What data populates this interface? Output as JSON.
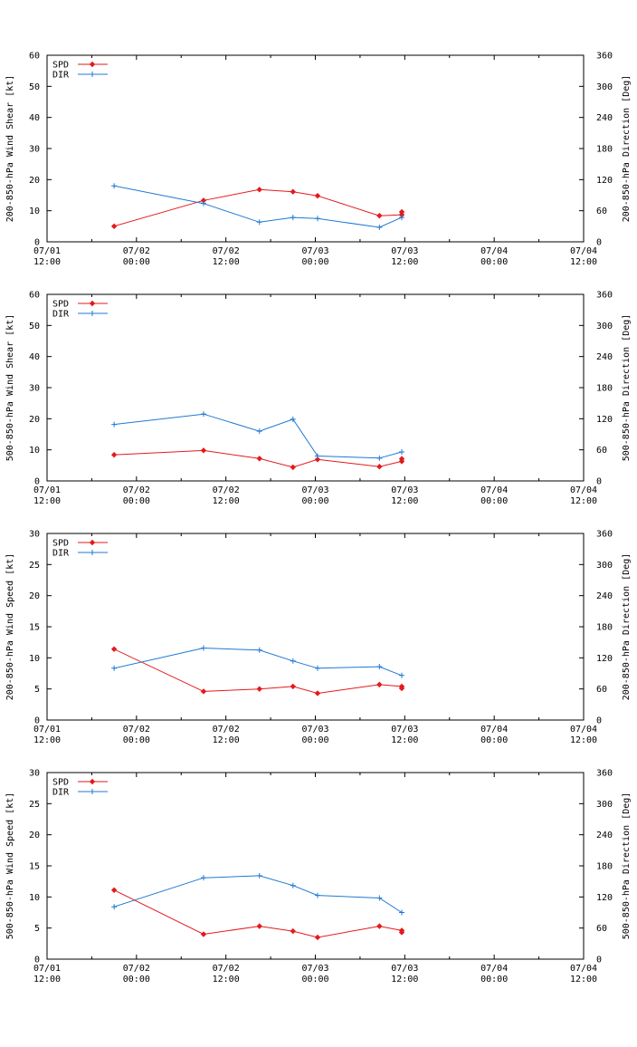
{
  "colors": {
    "spd": "#e41a1c",
    "dir": "#1f78d2",
    "axis": "#000000"
  },
  "chart_data": [
    {
      "type": "line",
      "ylabel_left": "200-850-hPa Wind Shear [kt]",
      "ylabel_right": "200-850-hPa Direction [Deg]",
      "ylim_left": [
        0,
        60
      ],
      "ylim_right": [
        0,
        360
      ],
      "yticks_left": [
        "0",
        "10",
        "20",
        "30",
        "40",
        "50",
        "60"
      ],
      "yticks_right": [
        "0",
        "60",
        "120",
        "180",
        "240",
        "300",
        "360"
      ],
      "xlim_hours": [
        0,
        72
      ],
      "xtick_labels": [
        [
          "07/01",
          "12:00"
        ],
        [
          "07/02",
          "00:00"
        ],
        [
          "07/02",
          "12:00"
        ],
        [
          "07/03",
          "00:00"
        ],
        [
          "07/03",
          "12:00"
        ],
        [
          "07/04",
          "00:00"
        ],
        [
          "07/04",
          "12:00"
        ]
      ],
      "legend": [
        "SPD",
        "DIR"
      ],
      "series": [
        {
          "name": "SPD",
          "axis": "left",
          "x": [
            9,
            21,
            28.5,
            33,
            36.3,
            44.6,
            47.6,
            47.6
          ],
          "values": [
            5,
            13.3,
            16.8,
            16.1,
            14.8,
            8.4,
            8.7,
            9.6
          ]
        },
        {
          "name": "DIR",
          "axis": "right",
          "x": [
            9,
            21,
            28.5,
            33,
            36.3,
            44.6,
            47.6
          ],
          "values": [
            108,
            74,
            38,
            47,
            45,
            28,
            47
          ]
        }
      ]
    },
    {
      "type": "line",
      "ylabel_left": "500-850-hPa Wind Shear [kt]",
      "ylabel_right": "500-850-hPa Direction [Deg]",
      "ylim_left": [
        0,
        60
      ],
      "ylim_right": [
        0,
        360
      ],
      "yticks_left": [
        "0",
        "10",
        "20",
        "30",
        "40",
        "50",
        "60"
      ],
      "yticks_right": [
        "0",
        "60",
        "120",
        "180",
        "240",
        "300",
        "360"
      ],
      "xlim_hours": [
        0,
        72
      ],
      "xtick_labels": [
        [
          "07/01",
          "12:00"
        ],
        [
          "07/02",
          "00:00"
        ],
        [
          "07/02",
          "12:00"
        ],
        [
          "07/03",
          "00:00"
        ],
        [
          "07/03",
          "12:00"
        ],
        [
          "07/04",
          "00:00"
        ],
        [
          "07/04",
          "12:00"
        ]
      ],
      "legend": [
        "SPD",
        "DIR"
      ],
      "series": [
        {
          "name": "SPD",
          "axis": "left",
          "x": [
            9,
            21,
            28.5,
            33,
            36.3,
            44.6,
            47.6,
            47.6
          ],
          "values": [
            8.4,
            9.8,
            7.2,
            4.4,
            6.9,
            4.6,
            6.3,
            7.1
          ]
        },
        {
          "name": "DIR",
          "axis": "right",
          "x": [
            9,
            21,
            28.5,
            33,
            36.3,
            44.6,
            47.6
          ],
          "values": [
            109,
            129,
            96,
            119,
            48,
            44,
            56
          ]
        }
      ]
    },
    {
      "type": "line",
      "ylabel_left": "200-850-hPa Wind Speed [kt]",
      "ylabel_right": "200-850-hPa Direction [Deg]",
      "ylim_left": [
        0,
        30
      ],
      "ylim_right": [
        0,
        360
      ],
      "yticks_left": [
        "0",
        "5",
        "10",
        "15",
        "20",
        "25",
        "30"
      ],
      "yticks_right": [
        "0",
        "60",
        "120",
        "180",
        "240",
        "300",
        "360"
      ],
      "xlim_hours": [
        0,
        72
      ],
      "xtick_labels": [
        [
          "07/01",
          "12:00"
        ],
        [
          "07/02",
          "00:00"
        ],
        [
          "07/02",
          "12:00"
        ],
        [
          "07/03",
          "00:00"
        ],
        [
          "07/03",
          "12:00"
        ],
        [
          "07/04",
          "00:00"
        ],
        [
          "07/04",
          "12:00"
        ]
      ],
      "legend": [
        "SPD",
        "DIR"
      ],
      "series": [
        {
          "name": "SPD",
          "axis": "left",
          "x": [
            9,
            21,
            28.5,
            33,
            36.3,
            44.6,
            47.6,
            47.6
          ],
          "values": [
            11.4,
            4.6,
            5.0,
            5.4,
            4.3,
            5.7,
            5.4,
            5.1
          ]
        },
        {
          "name": "DIR",
          "axis": "right",
          "x": [
            9,
            21,
            28.5,
            33,
            36.3,
            44.6,
            47.6
          ],
          "values": [
            100,
            139,
            135,
            114,
            100,
            103,
            86
          ]
        }
      ]
    },
    {
      "type": "line",
      "ylabel_left": "500-850-hPa Wind Speed [kt]",
      "ylabel_right": "500-850-hPa Direction [Deg]",
      "ylim_left": [
        0,
        30
      ],
      "ylim_right": [
        0,
        360
      ],
      "yticks_left": [
        "0",
        "5",
        "10",
        "15",
        "20",
        "25",
        "30"
      ],
      "yticks_right": [
        "0",
        "60",
        "120",
        "180",
        "240",
        "300",
        "360"
      ],
      "xlim_hours": [
        0,
        72
      ],
      "xtick_labels": [
        [
          "07/01",
          "12:00"
        ],
        [
          "07/02",
          "00:00"
        ],
        [
          "07/02",
          "12:00"
        ],
        [
          "07/03",
          "00:00"
        ],
        [
          "07/03",
          "12:00"
        ],
        [
          "07/04",
          "00:00"
        ],
        [
          "07/04",
          "12:00"
        ]
      ],
      "legend": [
        "SPD",
        "DIR"
      ],
      "series": [
        {
          "name": "SPD",
          "axis": "left",
          "x": [
            9,
            21,
            28.5,
            33,
            36.3,
            44.6,
            47.6,
            47.6
          ],
          "values": [
            11.1,
            4.0,
            5.3,
            4.5,
            3.5,
            5.3,
            4.6,
            4.3
          ]
        },
        {
          "name": "DIR",
          "axis": "right",
          "x": [
            9,
            21,
            28.5,
            33,
            36.3,
            44.6,
            47.6
          ],
          "values": [
            101,
            157,
            161,
            142,
            123,
            118,
            90
          ]
        }
      ]
    }
  ]
}
